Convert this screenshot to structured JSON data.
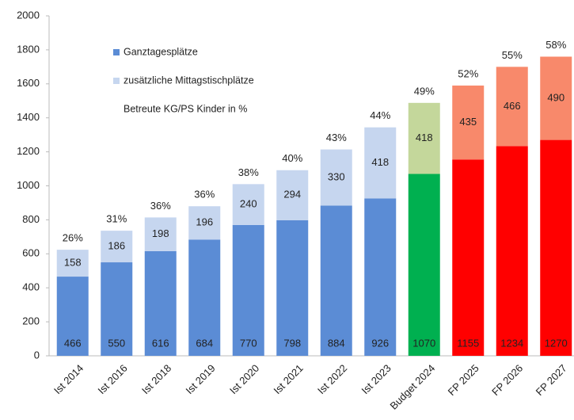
{
  "chart_data": {
    "type": "stacked_bar",
    "categories": [
      "Ist 2014",
      "Ist 2016",
      "Ist 2018",
      "Ist 2019",
      "Ist 2020",
      "Ist 2021",
      "Ist 2022",
      "Ist 2023",
      "Budget 2024",
      "FP 2025",
      "FP 2026",
      "FP 2027"
    ],
    "series": [
      {
        "name": "Ganztagesplätze",
        "color": "#5b8cd5",
        "colors": [
          "#5b8cd5",
          "#5b8cd5",
          "#5b8cd5",
          "#5b8cd5",
          "#5b8cd5",
          "#5b8cd5",
          "#5b8cd5",
          "#5b8cd5",
          "#00b050",
          "#ff0000",
          "#ff0000",
          "#ff0000"
        ],
        "values": [
          466,
          550,
          616,
          684,
          770,
          798,
          884,
          926,
          1070,
          1155,
          1234,
          1270
        ]
      },
      {
        "name": "zusätzliche Mittagstischplätze",
        "color": "#c6d6ef",
        "colors": [
          "#c6d6ef",
          "#c6d6ef",
          "#c6d6ef",
          "#c6d6ef",
          "#c6d6ef",
          "#c6d6ef",
          "#c6d6ef",
          "#c6d6ef",
          "#c4d79b",
          "#f8896b",
          "#f8896b",
          "#f8896b"
        ],
        "values": [
          158,
          186,
          198,
          196,
          240,
          294,
          330,
          418,
          418,
          435,
          466,
          490
        ]
      }
    ],
    "top_labels": {
      "name": "Betreute KG/PS Kinder in %",
      "values": [
        26,
        31,
        36,
        36,
        38,
        40,
        43,
        44,
        49,
        52,
        55,
        58
      ],
      "value_labels": [
        "26%",
        "31%",
        "36%",
        "36%",
        "38%",
        "40%",
        "43%",
        "44%",
        "49%",
        "52%",
        "55%",
        "58%"
      ]
    },
    "ylim": [
      0,
      2000
    ],
    "yticks": [
      0,
      200,
      400,
      600,
      800,
      1000,
      1200,
      1400,
      1600,
      1800,
      2000
    ],
    "grid": false
  }
}
